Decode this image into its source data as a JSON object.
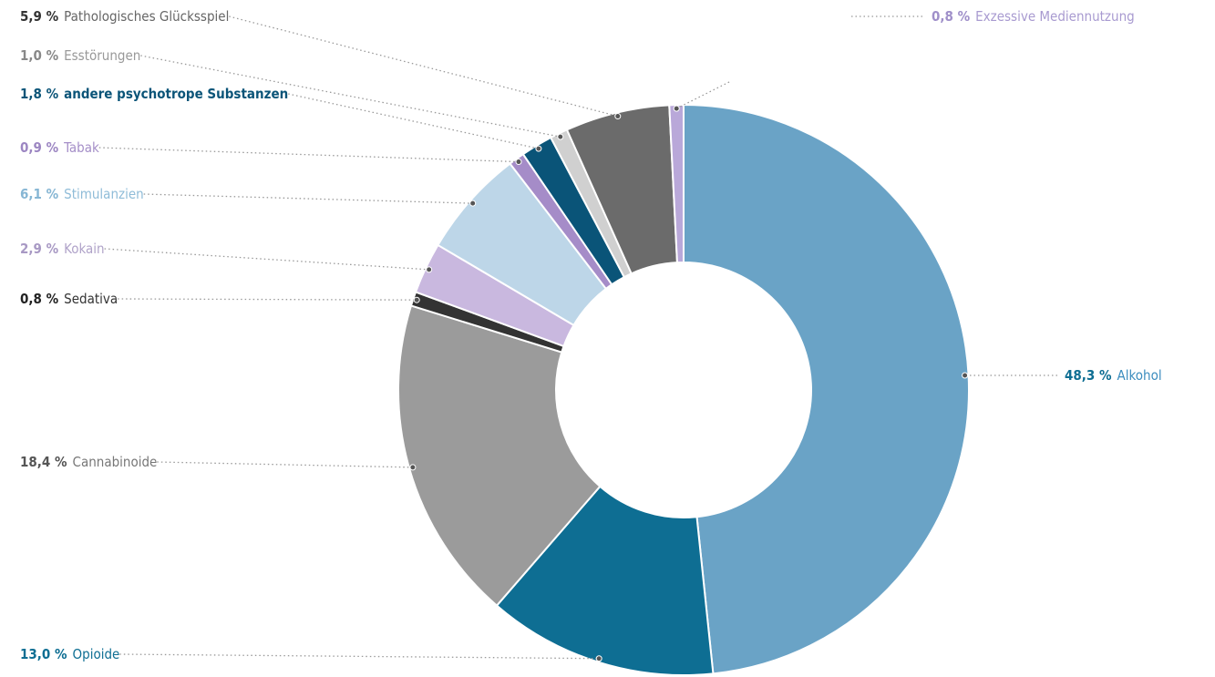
{
  "chart_data": {
    "type": "pie",
    "donut": true,
    "categories": [
      "Alkohol",
      "Opioide",
      "Cannabinoide",
      "Sedativa",
      "Kokain",
      "Stimulanzien",
      "Tabak",
      "andere psychotrope Substanzen",
      "Esstörungen",
      "Pathologisches Glücksspiel",
      "Exzessive Mediennutzung"
    ],
    "values": [
      48.3,
      13.0,
      18.4,
      0.8,
      2.9,
      6.1,
      0.9,
      1.8,
      1.0,
      5.9,
      0.8
    ],
    "value_labels": [
      "48,3 %",
      "13,0 %",
      "18,4 %",
      "0,8 %",
      "2,9 %",
      "6,1 %",
      "0,9 %",
      "1,8 %",
      "1,0 %",
      "5,9 %",
      "0,8 %"
    ],
    "colors": [
      "#6aa3c6",
      "#0e6e93",
      "#9b9b9b",
      "#333333",
      "#c9b8df",
      "#bdd6e8",
      "#a58cc8",
      "#0a5478",
      "#d0d0d0",
      "#6b6b6b",
      "#b9a8d9"
    ]
  }
}
